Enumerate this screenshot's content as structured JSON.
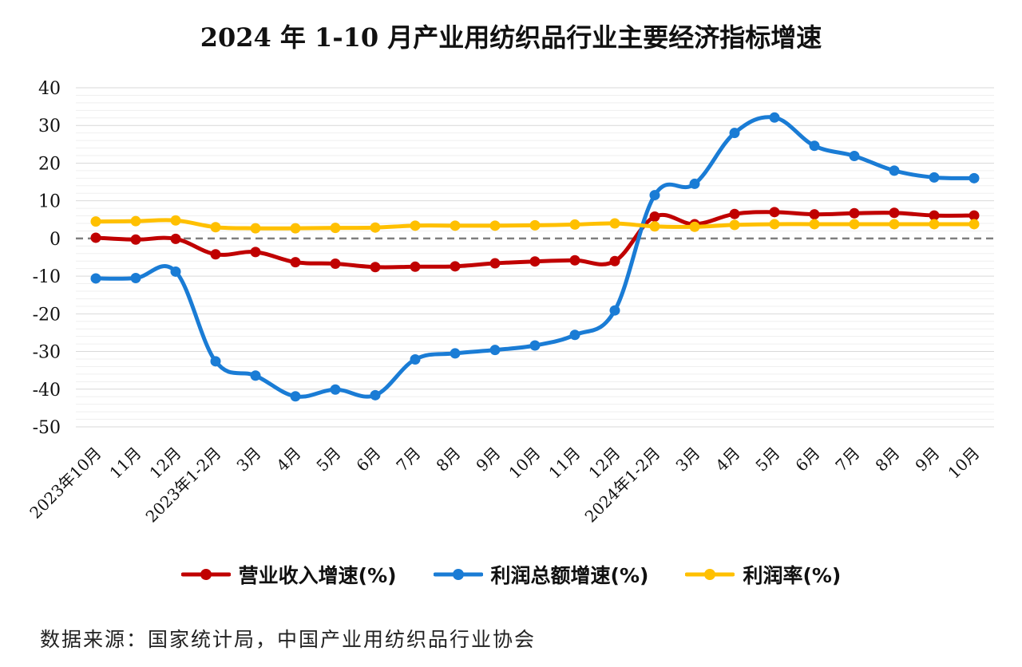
{
  "title": "2024 年 1-10 月产业用纺织品行业主要经济指标增速",
  "source": "数据来源：国家统计局，中国产业用纺织品行业协会",
  "chart_data": {
    "type": "line",
    "title": "2024 年 1-10 月产业用纺织品行业主要经济指标增速",
    "xlabel": "",
    "ylabel": "",
    "ylim": [
      -50,
      40
    ],
    "yticks": [
      40,
      30,
      20,
      10,
      0,
      -10,
      -20,
      -30,
      -40,
      -50
    ],
    "grid": true,
    "zero_line": "dashed",
    "legend": "bottom",
    "categories": [
      "2023年10月",
      "11月",
      "12月",
      "2023年1-2月",
      "3月",
      "4月",
      "5月",
      "6月",
      "7月",
      "8月",
      "9月",
      "10月",
      "11月",
      "12月",
      "2024年1-2月",
      "3月",
      "4月",
      "5月",
      "6月",
      "7月",
      "8月",
      "9月",
      "10月"
    ],
    "series": [
      {
        "name": "营业收入增速(%)",
        "color": "#C00000",
        "values": [
          0.2,
          -0.3,
          -0.1,
          -4.2,
          -3.6,
          -6.3,
          -6.7,
          -7.6,
          -7.5,
          -7.4,
          -6.6,
          -6.1,
          -5.8,
          -6.0,
          5.8,
          3.8,
          6.5,
          7.0,
          6.4,
          6.7,
          6.8,
          6.1,
          6.1
        ]
      },
      {
        "name": "利润总额增速(%)",
        "color": "#1A7CD5",
        "values": [
          -10.6,
          -10.5,
          -8.8,
          -32.6,
          -36.4,
          -41.9,
          -40.1,
          -41.6,
          -32.1,
          -30.5,
          -29.6,
          -28.4,
          -25.6,
          -19.1,
          11.5,
          14.5,
          28.0,
          32.1,
          24.6,
          21.9,
          18.0,
          16.2,
          16.0
        ]
      },
      {
        "name": "利润率(%)",
        "color": "#FFC000",
        "values": [
          4.5,
          4.6,
          4.8,
          3.0,
          2.7,
          2.7,
          2.8,
          2.9,
          3.4,
          3.4,
          3.4,
          3.5,
          3.7,
          4.0,
          3.2,
          3.1,
          3.6,
          3.8,
          3.8,
          3.8,
          3.8,
          3.8,
          3.8
        ]
      }
    ]
  }
}
